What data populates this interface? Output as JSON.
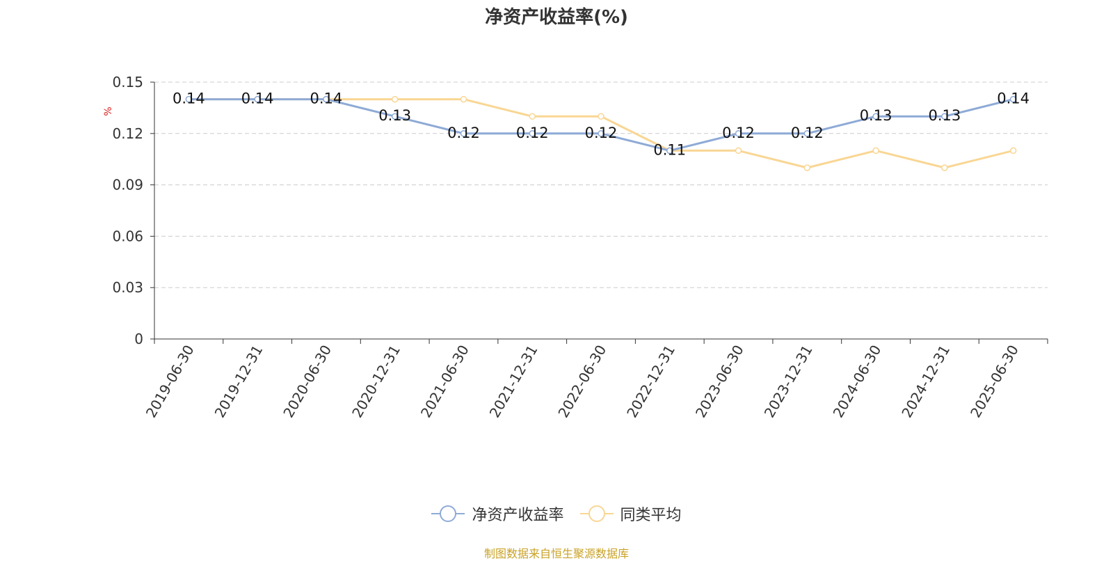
{
  "chart_title": "净资产收益率(%)",
  "source_note": "制图数据来自恒生聚源数据库",
  "colors": {
    "series1": "#8eaad6",
    "series2": "#f9d694",
    "unit": "#e02020",
    "axis": "#333333",
    "grid": "#cccccc",
    "text": "#333333",
    "source": "#c9a227"
  },
  "chart_data": {
    "type": "line",
    "title": "净资产收益率(%)",
    "ylabel": "%",
    "xlabel": "",
    "ylim": [
      0,
      0.15
    ],
    "yticks": [
      "0",
      "0.03",
      "0.06",
      "0.09",
      "0.12",
      "0.15"
    ],
    "grid": true,
    "legend_position": "bottom-center",
    "categories": [
      "2019-06-30",
      "2019-12-31",
      "2020-06-30",
      "2020-12-31",
      "2021-06-30",
      "2021-12-31",
      "2022-06-30",
      "2022-12-31",
      "2023-06-30",
      "2023-12-31",
      "2024-06-30",
      "2024-12-31",
      "2025-06-30"
    ],
    "series": [
      {
        "name": "净资产收益率",
        "values": [
          0.14,
          0.14,
          0.14,
          0.13,
          0.12,
          0.12,
          0.12,
          0.11,
          0.12,
          0.12,
          0.13,
          0.13,
          0.14
        ],
        "data_labels": true
      },
      {
        "name": "同类平均",
        "values": [
          0.14,
          0.14,
          0.14,
          0.14,
          0.14,
          0.13,
          0.13,
          0.11,
          0.11,
          0.1,
          0.11,
          0.1,
          0.11
        ],
        "data_labels": false
      }
    ]
  }
}
